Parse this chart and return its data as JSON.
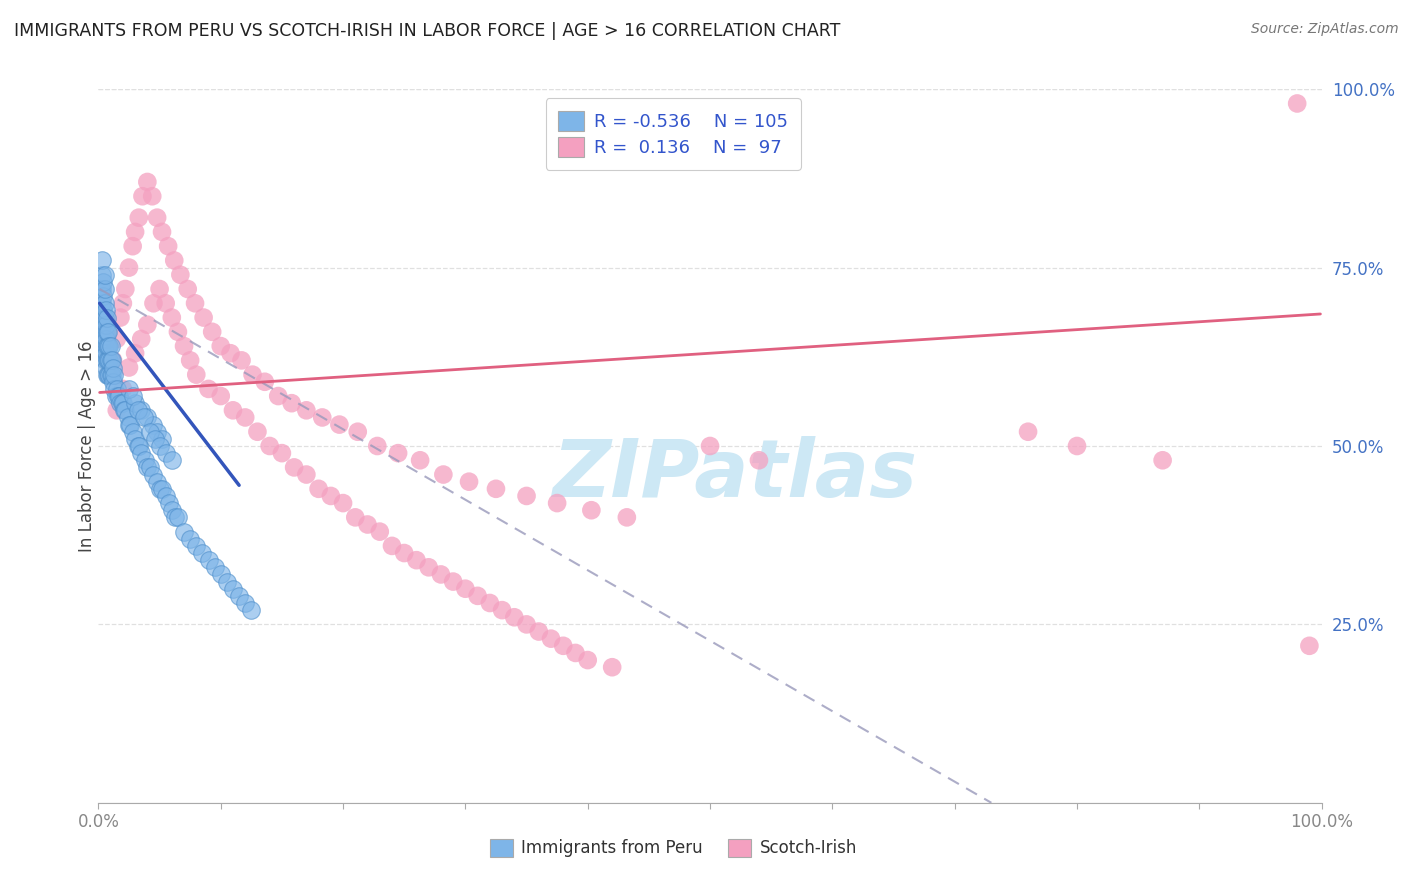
{
  "title": "IMMIGRANTS FROM PERU VS SCOTCH-IRISH IN LABOR FORCE | AGE > 16 CORRELATION CHART",
  "source": "Source: ZipAtlas.com",
  "ylabel": "In Labor Force | Age > 16",
  "xlim": [
    0.0,
    1.0
  ],
  "ylim": [
    0.0,
    1.0
  ],
  "xticks": [
    0.0,
    0.1,
    0.2,
    0.3,
    0.4,
    0.5,
    0.6,
    0.7,
    0.8,
    0.9,
    1.0
  ],
  "xticklabels_show": [
    "0.0%",
    "100.0%"
  ],
  "yticks_right": [
    0.25,
    0.5,
    0.75,
    1.0
  ],
  "yticklabels_right": [
    "25.0%",
    "50.0%",
    "75.0%",
    "100.0%"
  ],
  "watermark": "ZIPatlas",
  "blue_color": "#7EB5E8",
  "blue_edge_color": "#5090CC",
  "pink_color": "#F4A0C0",
  "pink_edge_color": "#E06090",
  "blue_scatter_x": [
    0.002,
    0.002,
    0.002,
    0.003,
    0.003,
    0.003,
    0.003,
    0.003,
    0.003,
    0.003,
    0.004,
    0.004,
    0.004,
    0.004,
    0.004,
    0.004,
    0.005,
    0.005,
    0.005,
    0.005,
    0.005,
    0.005,
    0.005,
    0.006,
    0.006,
    0.006,
    0.006,
    0.006,
    0.007,
    0.007,
    0.007,
    0.007,
    0.007,
    0.008,
    0.008,
    0.008,
    0.008,
    0.009,
    0.009,
    0.009,
    0.01,
    0.01,
    0.01,
    0.011,
    0.011,
    0.012,
    0.012,
    0.013,
    0.013,
    0.014,
    0.015,
    0.016,
    0.017,
    0.018,
    0.019,
    0.02,
    0.021,
    0.022,
    0.024,
    0.025,
    0.026,
    0.028,
    0.03,
    0.032,
    0.033,
    0.035,
    0.038,
    0.04,
    0.042,
    0.045,
    0.048,
    0.05,
    0.052,
    0.055,
    0.058,
    0.06,
    0.063,
    0.065,
    0.07,
    0.075,
    0.08,
    0.085,
    0.09,
    0.095,
    0.1,
    0.105,
    0.11,
    0.115,
    0.12,
    0.125,
    0.03,
    0.035,
    0.04,
    0.045,
    0.048,
    0.052,
    0.025,
    0.028,
    0.032,
    0.037,
    0.042,
    0.046,
    0.05,
    0.055,
    0.06
  ],
  "blue_scatter_y": [
    0.68,
    0.7,
    0.72,
    0.65,
    0.67,
    0.68,
    0.7,
    0.72,
    0.74,
    0.76,
    0.63,
    0.65,
    0.67,
    0.69,
    0.71,
    0.73,
    0.62,
    0.64,
    0.66,
    0.68,
    0.7,
    0.72,
    0.74,
    0.61,
    0.63,
    0.65,
    0.67,
    0.69,
    0.6,
    0.62,
    0.64,
    0.66,
    0.68,
    0.6,
    0.62,
    0.64,
    0.66,
    0.6,
    0.62,
    0.64,
    0.6,
    0.62,
    0.64,
    0.6,
    0.62,
    0.59,
    0.61,
    0.58,
    0.6,
    0.57,
    0.58,
    0.57,
    0.57,
    0.56,
    0.56,
    0.56,
    0.55,
    0.55,
    0.54,
    0.53,
    0.53,
    0.52,
    0.51,
    0.5,
    0.5,
    0.49,
    0.48,
    0.47,
    0.47,
    0.46,
    0.45,
    0.44,
    0.44,
    0.43,
    0.42,
    0.41,
    0.4,
    0.4,
    0.38,
    0.37,
    0.36,
    0.35,
    0.34,
    0.33,
    0.32,
    0.31,
    0.3,
    0.29,
    0.28,
    0.27,
    0.56,
    0.55,
    0.54,
    0.53,
    0.52,
    0.51,
    0.58,
    0.57,
    0.55,
    0.54,
    0.52,
    0.51,
    0.5,
    0.49,
    0.48
  ],
  "pink_scatter_x": [
    0.01,
    0.012,
    0.015,
    0.018,
    0.02,
    0.022,
    0.025,
    0.028,
    0.03,
    0.033,
    0.036,
    0.04,
    0.044,
    0.048,
    0.052,
    0.057,
    0.062,
    0.067,
    0.073,
    0.079,
    0.086,
    0.093,
    0.1,
    0.108,
    0.117,
    0.126,
    0.136,
    0.147,
    0.158,
    0.17,
    0.183,
    0.197,
    0.212,
    0.228,
    0.245,
    0.263,
    0.282,
    0.303,
    0.325,
    0.35,
    0.375,
    0.403,
    0.432,
    0.015,
    0.02,
    0.025,
    0.03,
    0.035,
    0.04,
    0.045,
    0.05,
    0.055,
    0.06,
    0.065,
    0.07,
    0.075,
    0.08,
    0.09,
    0.1,
    0.11,
    0.12,
    0.13,
    0.14,
    0.15,
    0.16,
    0.17,
    0.18,
    0.19,
    0.2,
    0.21,
    0.22,
    0.23,
    0.24,
    0.25,
    0.26,
    0.27,
    0.28,
    0.29,
    0.3,
    0.31,
    0.32,
    0.33,
    0.34,
    0.35,
    0.36,
    0.37,
    0.38,
    0.39,
    0.4,
    0.42,
    0.5,
    0.54,
    0.76,
    0.8,
    0.87,
    0.98,
    0.99
  ],
  "pink_scatter_y": [
    0.6,
    0.62,
    0.65,
    0.68,
    0.7,
    0.72,
    0.75,
    0.78,
    0.8,
    0.82,
    0.85,
    0.87,
    0.85,
    0.82,
    0.8,
    0.78,
    0.76,
    0.74,
    0.72,
    0.7,
    0.68,
    0.66,
    0.64,
    0.63,
    0.62,
    0.6,
    0.59,
    0.57,
    0.56,
    0.55,
    0.54,
    0.53,
    0.52,
    0.5,
    0.49,
    0.48,
    0.46,
    0.45,
    0.44,
    0.43,
    0.42,
    0.41,
    0.4,
    0.55,
    0.58,
    0.61,
    0.63,
    0.65,
    0.67,
    0.7,
    0.72,
    0.7,
    0.68,
    0.66,
    0.64,
    0.62,
    0.6,
    0.58,
    0.57,
    0.55,
    0.54,
    0.52,
    0.5,
    0.49,
    0.47,
    0.46,
    0.44,
    0.43,
    0.42,
    0.4,
    0.39,
    0.38,
    0.36,
    0.35,
    0.34,
    0.33,
    0.32,
    0.31,
    0.3,
    0.29,
    0.28,
    0.27,
    0.26,
    0.25,
    0.24,
    0.23,
    0.22,
    0.21,
    0.2,
    0.19,
    0.5,
    0.48,
    0.52,
    0.5,
    0.48,
    0.98,
    0.22
  ],
  "blue_trend_x": [
    0.001,
    0.115
  ],
  "blue_trend_y": [
    0.7,
    0.445
  ],
  "pink_trend_x": [
    0.001,
    0.999
  ],
  "pink_trend_y": [
    0.575,
    0.685
  ],
  "dashed_trend_x": [
    0.001,
    0.73
  ],
  "dashed_trend_y": [
    0.72,
    0.0
  ],
  "legend_blue_R": "-0.536",
  "legend_blue_N": "105",
  "legend_pink_R": " 0.136",
  "legend_pink_N": " 97",
  "background_color": "#ffffff",
  "grid_color": "#e0e0e0",
  "watermark_color": "#cde8f5",
  "right_tick_color": "#4472C4",
  "axis_tick_color": "#888888"
}
